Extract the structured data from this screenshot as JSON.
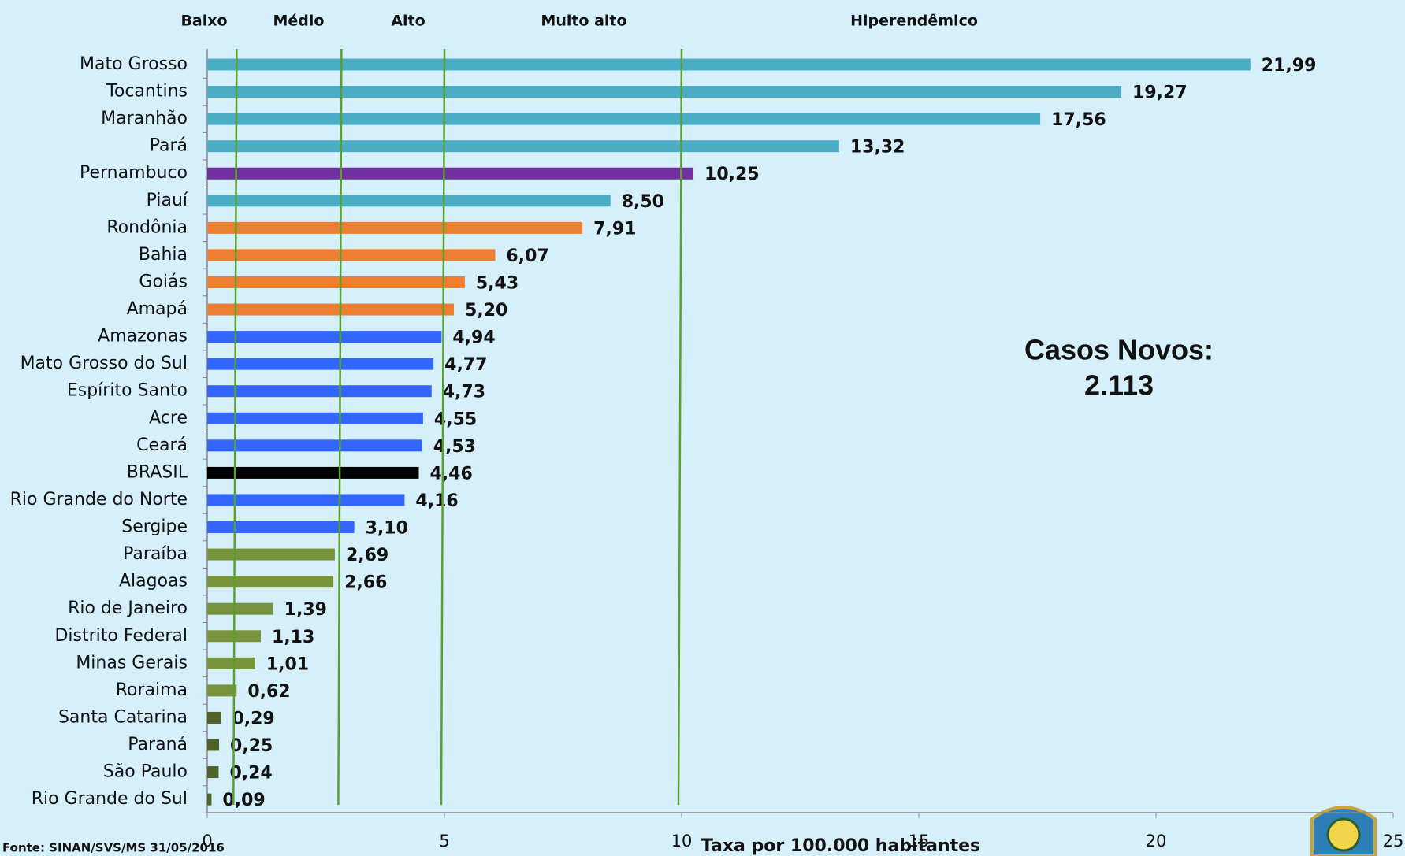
{
  "chart_data": {
    "type": "bar",
    "orientation": "horizontal",
    "x_label": "Taxa por 100.000 habitantes",
    "source": "Fonte: SINAN/SVS/MS 31/05/2016",
    "annotation": [
      "Casos Novos:",
      "2.113"
    ],
    "zones": [
      "Baixo",
      "Médio",
      "Alto",
      "Muito alto",
      "Hiperendêmico"
    ],
    "thresholds": [
      0.62,
      2.83,
      5,
      10
    ],
    "threshold_color": "#5aa02c",
    "categories": [
      "Mato Grosso",
      "Tocantins",
      "Maranhão",
      "Pará",
      "Pernambuco",
      "Piauí",
      "Rondônia",
      "Bahia",
      "Goiás",
      "Amapá",
      "Amazonas",
      "Mato Grosso do Sul",
      "Espírito Santo",
      "Acre",
      "Ceará",
      "BRASIL",
      "Rio Grande do Norte",
      "Sergipe",
      "Paraíba",
      "Alagoas",
      "Rio de Janeiro",
      "Distrito Federal",
      "Minas Gerais",
      "Roraima",
      "Santa Catarina",
      "Paraná",
      "São Paulo",
      "Rio Grande do Sul"
    ],
    "values": [
      21.99,
      19.27,
      17.56,
      13.32,
      10.25,
      8.5,
      7.91,
      6.07,
      5.43,
      5.2,
      4.94,
      4.77,
      4.73,
      4.55,
      4.53,
      4.46,
      4.16,
      3.1,
      2.69,
      2.66,
      1.39,
      1.13,
      1.01,
      0.62,
      0.29,
      0.25,
      0.24,
      0.09
    ],
    "value_labels": [
      "21,99",
      "19,27",
      "17,56",
      "13,32",
      "10,25",
      "8,50",
      "7,91",
      "6,07",
      "5,43",
      "5,20",
      "4,94",
      "4,77",
      "4,73",
      "4,55",
      "4,53",
      "4,46",
      "4,16",
      "3,10",
      "2,69",
      "2,66",
      "1,39",
      "1,13",
      "1,01",
      "0,62",
      "0,29",
      "0,25",
      "0,24",
      "0,09"
    ],
    "colors": [
      "#4bacc6",
      "#4bacc6",
      "#4bacc6",
      "#4bacc6",
      "#7030a0",
      "#4bacc6",
      "#ed7d31",
      "#ed7d31",
      "#ed7d31",
      "#ed7d31",
      "#3366ff",
      "#3366ff",
      "#3366ff",
      "#3366ff",
      "#3366ff",
      "#000000",
      "#3366ff",
      "#3366ff",
      "#77933c",
      "#77933c",
      "#77933c",
      "#77933c",
      "#77933c",
      "#77933c",
      "#4f6228",
      "#4f6228",
      "#4f6228",
      "#4f6228"
    ],
    "xlim": [
      0,
      25
    ],
    "xticks": [
      0,
      5,
      10,
      15,
      20,
      25
    ]
  }
}
